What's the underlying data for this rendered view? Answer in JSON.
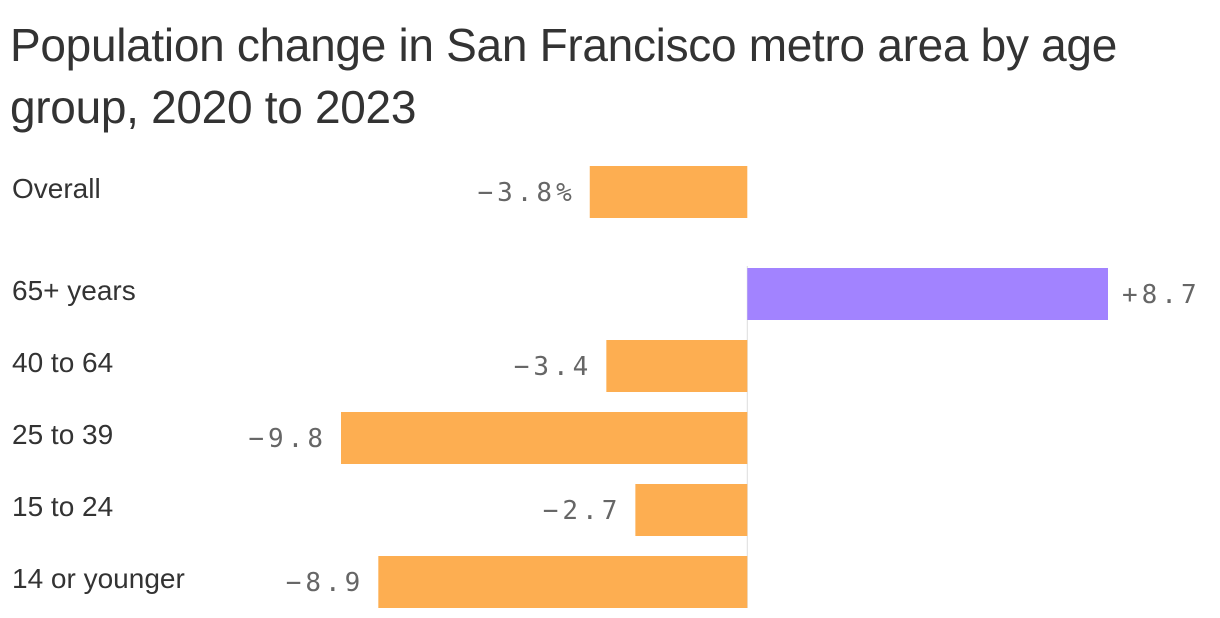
{
  "chart_data": {
    "type": "bar",
    "orientation": "horizontal",
    "title": "Population change in San Francisco metro area by age group, 2020 to 2023",
    "categories": [
      "Overall",
      "65+ years",
      "40 to 64",
      "25 to 39",
      "15 to 24",
      "14 or younger"
    ],
    "values": [
      -3.8,
      8.7,
      -3.4,
      -9.8,
      -2.7,
      -8.9
    ],
    "value_labels": [
      "−3.8%",
      "+8.7",
      "−3.4",
      "−9.8",
      "−2.7",
      "−8.9"
    ],
    "xlim": [
      -9.8,
      8.7
    ],
    "grid": false,
    "legend": "none",
    "colors": {
      "negative": "#fdae51",
      "positive": "#a283ff",
      "zero_line": "#dddddd",
      "text": "#333333",
      "value_text": "#666666"
    }
  }
}
